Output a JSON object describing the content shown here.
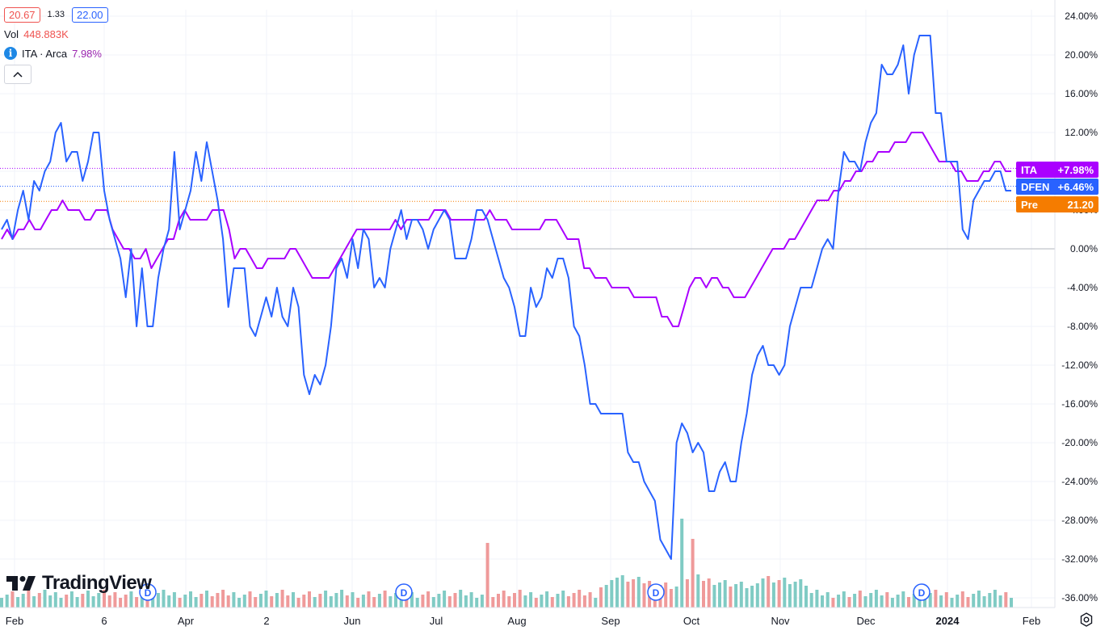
{
  "legend": {
    "low_box": "20.67",
    "mid_value": "1.33",
    "high_box": "22.00",
    "vol_label": "Vol",
    "vol_value": "448.883K",
    "info_icon_glyph": "i",
    "compare_label": "ITA · Arca",
    "compare_value": "7.98%"
  },
  "brand": {
    "name": "TradingView"
  },
  "colors": {
    "dfen": "#2962ff",
    "ita": "#aa00ff",
    "pre": "#f57c00",
    "vol_up": "#80cbc4",
    "vol_down": "#ef9a9a"
  },
  "chart_data": {
    "type": "line",
    "y_unit": "%",
    "ylim": [
      -37,
      24.5
    ],
    "y_ticks": [
      "24.00%",
      "20.00%",
      "16.00%",
      "12.00%",
      "8.00%",
      "4.00%",
      "0.00%",
      "-4.00%",
      "-8.00%",
      "-12.00%",
      "-16.00%",
      "-20.00%",
      "-24.00%",
      "-28.00%",
      "-32.00%",
      "-36.00%"
    ],
    "x_ticks": [
      "Feb",
      "6",
      "Apr",
      "2",
      "Jun",
      "Jul",
      "Aug",
      "Sep",
      "Oct",
      "Nov",
      "Dec",
      "2024",
      "Feb"
    ],
    "price_labels": [
      {
        "name": "ITA",
        "value": "+7.98%",
        "y": 8.3,
        "color": "#aa00ff"
      },
      {
        "name": "DFEN",
        "value": "+6.46%",
        "y": 6.46,
        "color": "#2962ff"
      },
      {
        "name": "Pre",
        "value": "21.20",
        "y": 4.9,
        "color": "#f57c00"
      }
    ],
    "grid": true,
    "legend_position": "top-left",
    "series": [
      {
        "name": "DFEN",
        "values": [
          2,
          3,
          1,
          4,
          6,
          3,
          7,
          6,
          8,
          9,
          12,
          13,
          9,
          10,
          10,
          7,
          9,
          12,
          12,
          6,
          3,
          1,
          -1,
          -5,
          0,
          -8,
          -2,
          -8,
          -8,
          -3,
          0,
          2,
          10,
          2,
          4,
          6,
          10,
          7,
          11,
          8,
          5,
          1,
          -6,
          -2,
          -2,
          -2,
          -8,
          -9,
          -7,
          -5,
          -7,
          -4,
          -7,
          -8,
          -4,
          -6,
          -13,
          -15,
          -13,
          -14,
          -12,
          -8,
          -2,
          -1,
          -3,
          1,
          -2,
          2,
          1,
          -4,
          -3,
          -4,
          0,
          2,
          4,
          1,
          3,
          3,
          2,
          0,
          2,
          3,
          4,
          3,
          -1,
          -1,
          -1,
          1,
          4,
          4,
          3,
          1,
          -1,
          -3,
          -4,
          -6,
          -9,
          -9,
          -4,
          -6,
          -5,
          -2,
          -3,
          -1,
          -1,
          -3,
          -8,
          -9,
          -12,
          -16,
          -16,
          -17,
          -17,
          -17,
          -17,
          -17,
          -21,
          -22,
          -22,
          -24,
          -25,
          -26,
          -30,
          -31,
          -32,
          -20,
          -18,
          -19,
          -21,
          -20,
          -21,
          -25,
          -25,
          -23,
          -22,
          -24,
          -24,
          -20,
          -17,
          -13,
          -11,
          -10,
          -12,
          -12,
          -13,
          -12,
          -8,
          -6,
          -4,
          -4,
          -4,
          -2,
          0,
          1,
          0,
          6,
          10,
          9,
          9,
          8,
          11,
          13,
          14,
          19,
          18,
          18,
          19,
          21,
          16,
          20,
          22,
          22,
          22,
          14,
          14,
          9,
          9,
          9,
          2,
          1,
          5,
          6,
          7,
          7,
          8,
          8,
          6,
          6
        ],
        "color": "#2962ff"
      },
      {
        "name": "ITA",
        "values": [
          1,
          2,
          1,
          2,
          2,
          3,
          2,
          2,
          3,
          4,
          4,
          5,
          4,
          4,
          4,
          3,
          3,
          4,
          4,
          4,
          2,
          1,
          0,
          0,
          -1,
          -1,
          0,
          -2,
          -1,
          0,
          1,
          1,
          3,
          4,
          3,
          3,
          3,
          3,
          4,
          4,
          4,
          2,
          -1,
          0,
          0,
          -1,
          -2,
          -2,
          -1,
          -1,
          -1,
          -1,
          0,
          0,
          -1,
          -2,
          -3,
          -3,
          -3,
          -3,
          -2,
          -1,
          0,
          1,
          2,
          2,
          2,
          2,
          2,
          2,
          2,
          3,
          2,
          3,
          3,
          3,
          3,
          3,
          4,
          4,
          4,
          3,
          3,
          3,
          3,
          3,
          3,
          3,
          4,
          3,
          3,
          3,
          2,
          2,
          2,
          2,
          2,
          2,
          3,
          3,
          3,
          2,
          1,
          1,
          1,
          -2,
          -2,
          -3,
          -3,
          -3,
          -4,
          -4,
          -4,
          -4,
          -5,
          -5,
          -5,
          -5,
          -5,
          -7,
          -7,
          -8,
          -8,
          -6,
          -4,
          -3,
          -3,
          -4,
          -3,
          -3,
          -4,
          -4,
          -5,
          -5,
          -5,
          -4,
          -3,
          -2,
          -1,
          0,
          0,
          0,
          1,
          1,
          2,
          3,
          4,
          5,
          5,
          5,
          6,
          6,
          7,
          7,
          8,
          8,
          9,
          9,
          10,
          10,
          10,
          11,
          11,
          11,
          12,
          12,
          12,
          11,
          10,
          9,
          9,
          9,
          8,
          8,
          7,
          7,
          7,
          8,
          8,
          9,
          9,
          8,
          8
        ],
        "color": "#aa00ff"
      }
    ],
    "volume": {
      "values": [
        1,
        1,
        1,
        1,
        1,
        1,
        1,
        1,
        1,
        1,
        1,
        1,
        1,
        1,
        1,
        1,
        1,
        1,
        1,
        1,
        1,
        1,
        1,
        1,
        1,
        1,
        1,
        1,
        1,
        1,
        1,
        1,
        1,
        1,
        1,
        1,
        1,
        1,
        1,
        1,
        1,
        1,
        1,
        1,
        1,
        1,
        1,
        1,
        1,
        1,
        1,
        1,
        1,
        1,
        1,
        1,
        1,
        1,
        1,
        1,
        1,
        1,
        1,
        1,
        1,
        1,
        1,
        1,
        1,
        1,
        1,
        1,
        1,
        1,
        1,
        1,
        1,
        1,
        1,
        1,
        1,
        1,
        1,
        1,
        1,
        1,
        1,
        1,
        1,
        1,
        1,
        1,
        1,
        1,
        1,
        1,
        1,
        1,
        1,
        1,
        1,
        1,
        1,
        1,
        1,
        1,
        1,
        1,
        1,
        1,
        1,
        1,
        1,
        1,
        1,
        1,
        1,
        1,
        1,
        1,
        1,
        1,
        1,
        1,
        1,
        1,
        1,
        1,
        1,
        1,
        1,
        1,
        1,
        1,
        1,
        1,
        1,
        1,
        1,
        1,
        1,
        1,
        1,
        1,
        1,
        1,
        1,
        1,
        1,
        1,
        1,
        1,
        1,
        1,
        1,
        1,
        1,
        1,
        1,
        1,
        1,
        1,
        1,
        1,
        1,
        1,
        1,
        1,
        1,
        1,
        1,
        1,
        1,
        1,
        1,
        1,
        1,
        1,
        1,
        1,
        1,
        1,
        1,
        1,
        1,
        1,
        1,
        1,
        1,
        1,
        1,
        1
      ],
      "dividend_marker": "D"
    }
  }
}
